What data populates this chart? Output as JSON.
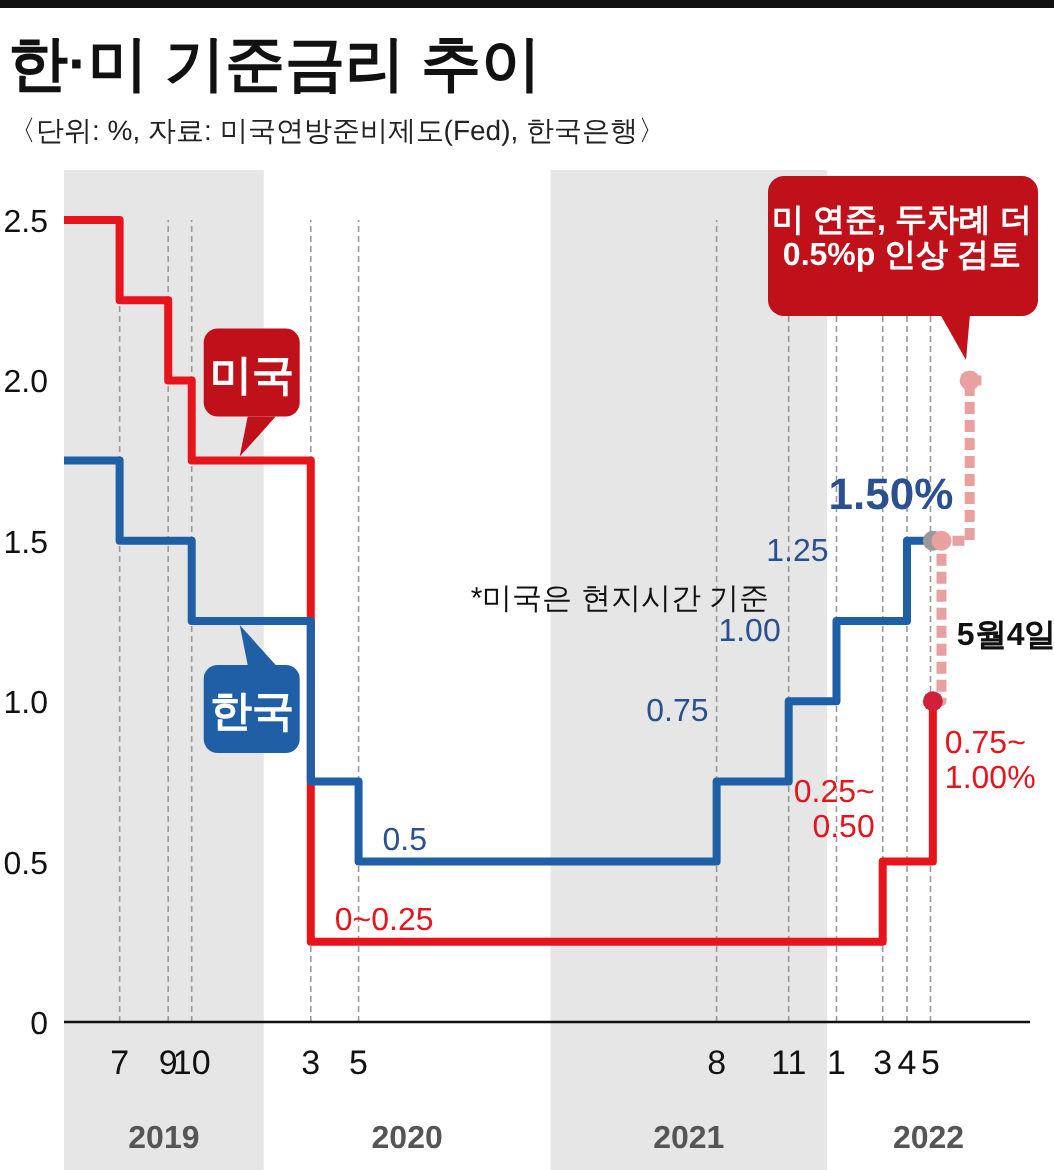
{
  "chart_data": {
    "type": "step",
    "title": "한·미 기준금리 추이",
    "subtitle": "〈단위: %, 자료: 미국연방준비제도(Fed), 한국은행〉",
    "xlim": [
      "2019-04-21",
      "2022-09-05"
    ],
    "ylim": [
      0,
      2.5
    ],
    "yticks": [
      0,
      {
        "value": 0.5,
        "label": "0.5"
      },
      {
        "value": 1,
        "label": "1.0"
      },
      1.5,
      {
        "value": 2,
        "label": "2.0"
      },
      2.5
    ],
    "xticks": [
      {
        "value": "2019-07",
        "label": "7"
      },
      {
        "value": "2019-09",
        "label": "9"
      },
      {
        "value": "2019-10",
        "label": "10"
      },
      {
        "value": "2020-03",
        "label": "3"
      },
      {
        "value": "2020-05",
        "label": "5"
      },
      {
        "value": "2021-08",
        "label": "8"
      },
      {
        "value": "2021-11",
        "label": "11"
      },
      {
        "value": "2022-01",
        "label": "1"
      },
      {
        "value": "2022-03",
        "label": "3"
      },
      {
        "value": "2022-04",
        "label": "4"
      },
      {
        "value": "2022-05",
        "label": "5"
      }
    ],
    "grid": "x",
    "bands": [
      {
        "axis": "x",
        "from": "2019-04-21",
        "to": "2020-01",
        "color": "#e6e6e6"
      },
      {
        "axis": "x",
        "from": "2021-01",
        "to": "2021-12-20",
        "color": "#e6e6e6"
      }
    ],
    "series": [
      {
        "name": "미국",
        "color": "#e8141b",
        "x": [
          "2019-04-21",
          "2019-07",
          "2019-09",
          "2019-10",
          "2020-03",
          "2022-03",
          "2022-05-04"
        ],
        "values": [
          2.5,
          2.25,
          2.0,
          1.75,
          0.25,
          0.5,
          1.0
        ],
        "value_labels": [
          null,
          null,
          null,
          null,
          "0~0.25",
          "0.25~\n0.50",
          "0.75~\n1.00%"
        ]
      },
      {
        "name": "한국",
        "color": "#1f5fa5",
        "x": [
          "2019-04-21",
          "2019-07",
          "2019-10",
          "2020-03",
          "2020-05",
          "2021-08",
          "2021-11",
          "2022-01",
          "2022-04",
          "2022-05"
        ],
        "values": [
          1.75,
          1.5,
          1.25,
          0.75,
          0.5,
          0.75,
          1.0,
          1.25,
          1.5,
          1.5
        ],
        "value_labels": [
          null,
          null,
          null,
          null,
          "0.5",
          "0.75",
          "1.00",
          "1.25",
          "1.50%",
          null
        ]
      },
      {
        "color": "#e8a0a0",
        "line_style": "dashed",
        "x": [
          "2022-05-04",
          "2022-05-15",
          "2022-06-20",
          "2022-07-05"
        ],
        "values": [
          1.0,
          1.5,
          2.0,
          2.0
        ]
      },
      {
        "type": "scatter",
        "marker": "circle",
        "x": [
          "2022-05-04",
          "2022-05-04",
          "2022-05-15",
          "2022-06-20"
        ],
        "values": [
          1.5,
          1.0,
          1.5,
          2.0
        ],
        "colors": [
          "#999999",
          "#d0203a",
          "#e8a0a0",
          "#e8a0a0"
        ]
      }
    ],
    "annotations": [
      "*미국은 현지시간 기준",
      "미 연준, 두차례 더\n0.5%p 인상 검토",
      {
        "text": "5월4일",
        "x": "2022-05-04",
        "y": 1.0
      },
      "2019",
      "2020",
      "2021",
      "2022"
    ]
  }
}
